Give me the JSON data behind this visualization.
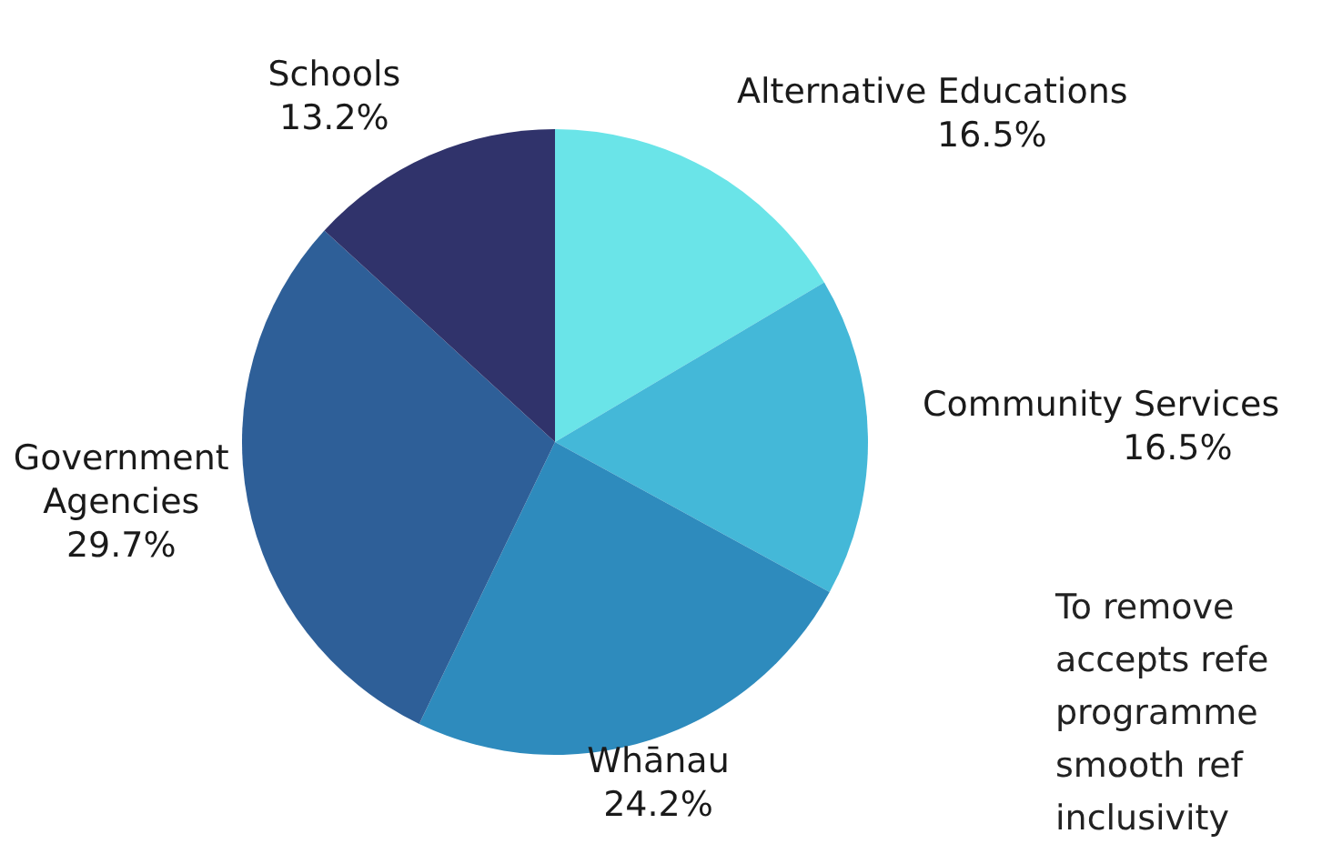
{
  "chart_data": {
    "type": "pie",
    "categories": [
      "Alternative Educations",
      "Community Services",
      "Whānau",
      "Government Agencies",
      "Schools"
    ],
    "values": [
      16.5,
      16.5,
      24.2,
      29.7,
      13.2
    ],
    "value_labels": [
      "16.5%",
      "16.5%",
      "24.2%",
      "29.7%",
      "13.2%"
    ],
    "colors": [
      "#6ae4e8",
      "#44b8d8",
      "#2e8bbd",
      "#2e5f98",
      "#30336b"
    ],
    "annotations": [
      "To remove",
      "accepts refe",
      "programme",
      "smooth ref",
      "inclusivity"
    ]
  }
}
